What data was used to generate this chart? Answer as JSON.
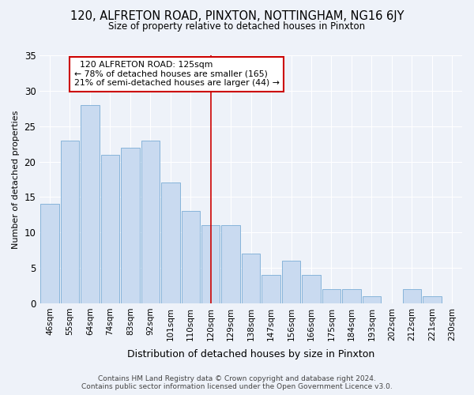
{
  "title": "120, ALFRETON ROAD, PINXTON, NOTTINGHAM, NG16 6JY",
  "subtitle": "Size of property relative to detached houses in Pinxton",
  "xlabel": "Distribution of detached houses by size in Pinxton",
  "ylabel": "Number of detached properties",
  "categories": [
    "46sqm",
    "55sqm",
    "64sqm",
    "74sqm",
    "83sqm",
    "92sqm",
    "101sqm",
    "110sqm",
    "120sqm",
    "129sqm",
    "138sqm",
    "147sqm",
    "156sqm",
    "166sqm",
    "175sqm",
    "184sqm",
    "193sqm",
    "202sqm",
    "212sqm",
    "221sqm",
    "230sqm"
  ],
  "values": [
    14,
    23,
    28,
    21,
    22,
    23,
    17,
    13,
    11,
    11,
    7,
    4,
    6,
    4,
    2,
    2,
    1,
    0,
    2,
    1,
    0
  ],
  "bar_color": "#c9daf0",
  "bar_edgecolor": "#7aacd6",
  "highlight_x": "120sqm",
  "highlight_label": "120 ALFRETON ROAD: 125sqm",
  "annotation_line1": "← 78% of detached houses are smaller (165)",
  "annotation_line2": "21% of semi-detached houses are larger (44) →",
  "vline_color": "#cc0000",
  "annotation_box_color": "#cc0000",
  "background_color": "#eef2f9",
  "grid_color": "#ffffff",
  "ylim": [
    0,
    35
  ],
  "yticks": [
    0,
    5,
    10,
    15,
    20,
    25,
    30,
    35
  ],
  "footer_line1": "Contains HM Land Registry data © Crown copyright and database right 2024.",
  "footer_line2": "Contains public sector information licensed under the Open Government Licence v3.0."
}
